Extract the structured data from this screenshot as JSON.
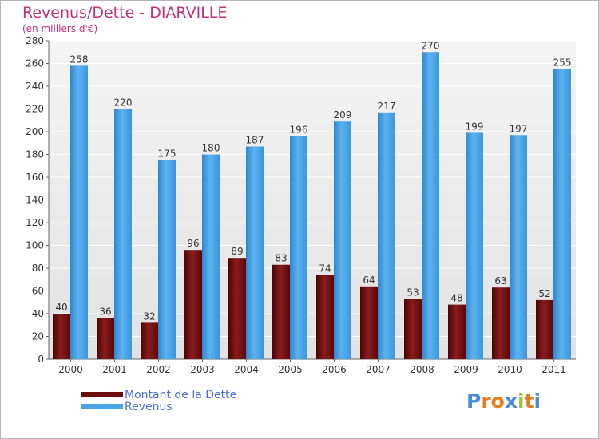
{
  "header": {
    "title": "Revenus/Dette - DIARVILLE",
    "subtitle": "(en milliers d'€)"
  },
  "legend": {
    "items": [
      {
        "label": "Montant de la Dette",
        "color": "#6b0d0d"
      },
      {
        "label": "Revenus",
        "color": "#4aa3e8"
      }
    ]
  },
  "logo": {
    "text": "Proxiti",
    "letters": [
      {
        "ch": "P",
        "color": "#4a8bd6"
      },
      {
        "ch": "r",
        "color": "#e57d22"
      },
      {
        "ch": "o",
        "color": "#e57d22"
      },
      {
        "ch": "x",
        "color": "#4a8bd6"
      },
      {
        "ch": "i",
        "color": "#9ac43a"
      },
      {
        "ch": "t",
        "color": "#e57d22"
      },
      {
        "ch": "i",
        "color": "#4a8bd6"
      }
    ]
  },
  "chart_data": {
    "type": "bar",
    "title": "Revenus/Dette - DIARVILLE",
    "ylabel": "(en milliers d'€)",
    "xlabel": "",
    "categories": [
      "2000",
      "2001",
      "2002",
      "2003",
      "2004",
      "2005",
      "2006",
      "2007",
      "2008",
      "2009",
      "2010",
      "2011"
    ],
    "series": [
      {
        "name": "Montant de la Dette",
        "color": "#6b0d0d",
        "values": [
          40,
          36,
          32,
          96,
          89,
          83,
          74,
          64,
          53,
          48,
          63,
          52
        ]
      },
      {
        "name": "Revenus",
        "color": "#4aa3e8",
        "values": [
          258,
          220,
          175,
          180,
          187,
          196,
          209,
          217,
          270,
          199,
          197,
          255
        ]
      }
    ],
    "ylim": [
      0,
      280
    ],
    "yticks": [
      0,
      20,
      40,
      60,
      80,
      100,
      120,
      140,
      160,
      180,
      200,
      220,
      240,
      260,
      280
    ],
    "grid": true,
    "legend_position": "bottom-left"
  }
}
